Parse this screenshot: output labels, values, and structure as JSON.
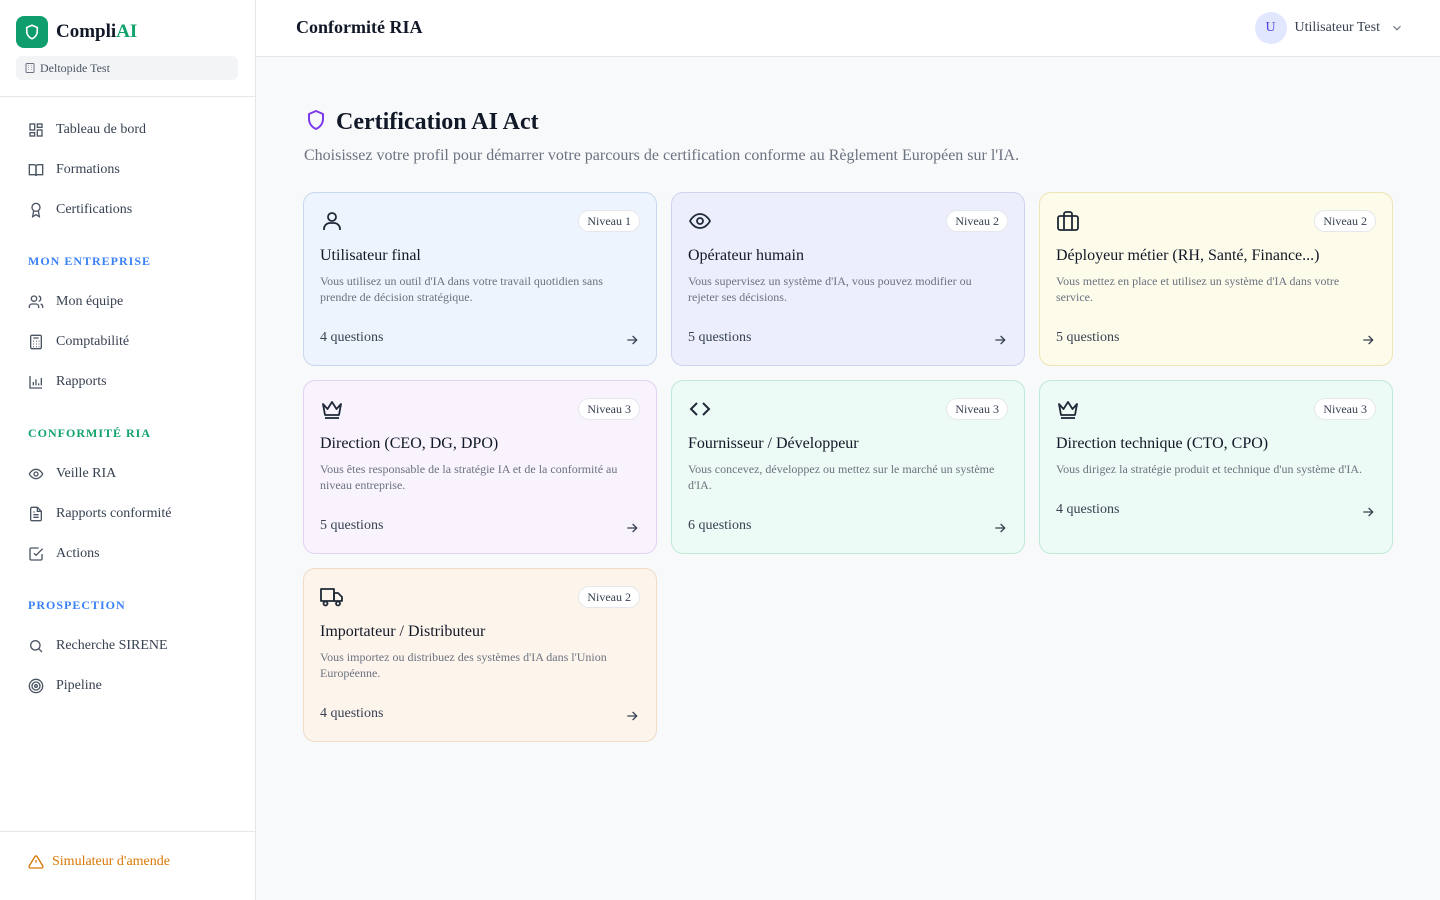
{
  "brand": {
    "name_prefix": "Compli",
    "name_accent": "AI",
    "workspace": "Deltopide Test"
  },
  "nav": {
    "main": [
      {
        "label": "Tableau de bord",
        "icon": "dashboard-icon"
      },
      {
        "label": "Formations",
        "icon": "book-icon"
      },
      {
        "label": "Certifications",
        "icon": "award-icon"
      }
    ],
    "sections": [
      {
        "title": "MON ENTREPRISE",
        "color": "#3b82f6",
        "items": [
          {
            "label": "Mon équipe",
            "icon": "users-icon"
          },
          {
            "label": "Comptabilité",
            "icon": "calculator-icon"
          },
          {
            "label": "Rapports",
            "icon": "bar-chart-icon"
          }
        ]
      },
      {
        "title": "CONFORMITÉ RIA",
        "color": "#10a36b",
        "items": [
          {
            "label": "Veille RIA",
            "icon": "eye-icon"
          },
          {
            "label": "Rapports conformité",
            "icon": "file-text-icon"
          },
          {
            "label": "Actions",
            "icon": "check-square-icon"
          }
        ]
      },
      {
        "title": "PROSPECTION",
        "color": "#3b82f6",
        "items": [
          {
            "label": "Recherche SIRENE",
            "icon": "search-icon"
          },
          {
            "label": "Pipeline",
            "icon": "target-icon"
          }
        ]
      }
    ],
    "bottom": {
      "label": "Simulateur d'amende",
      "icon": "alert-triangle-icon",
      "color": "#d97706"
    }
  },
  "header": {
    "title": "Conformité RIA",
    "user_initial": "U",
    "user_name": "Utilisateur Test"
  },
  "main": {
    "title": "Certification AI Act",
    "subtitle": "Choisissez votre profil pour démarrer votre parcours de certification conforme au Règlement Européen sur l'IA.",
    "cards": [
      {
        "icon": "user-icon",
        "level": "Niveau 1",
        "title": "Utilisateur final",
        "description": "Vous utilisez un outil d'IA dans votre travail quotidien sans prendre de décision stratégique.",
        "questions": "4 questions",
        "bg": "#eef4fd",
        "border": "#c9d8ef"
      },
      {
        "icon": "eye-icon",
        "level": "Niveau 2",
        "title": "Opérateur humain",
        "description": "Vous supervisez un système d'IA, vous pouvez modifier ou rejeter ses décisions.",
        "questions": "5 questions",
        "bg": "#eceffb",
        "border": "#cdd3ee"
      },
      {
        "icon": "briefcase-icon",
        "level": "Niveau 2",
        "title": "Déployeur métier (RH, Santé, Finance...)",
        "description": "Vous mettez en place et utilisez un système d'IA dans votre service.",
        "questions": "5 questions",
        "bg": "#fdfbea",
        "border": "#ece5b6"
      },
      {
        "icon": "crown-icon",
        "level": "Niveau 3",
        "title": "Direction (CEO, DG, DPO)",
        "description": "Vous êtes responsable de la stratégie IA et de la conformité au niveau entreprise.",
        "questions": "5 questions",
        "bg": "#f8f3fd",
        "border": "#e3d3f2"
      },
      {
        "icon": "code-icon",
        "level": "Niveau 3",
        "title": "Fournisseur / Développeur",
        "description": "Vous concevez, développez ou mettez sur le marché un système d'IA.",
        "questions": "6 questions",
        "bg": "#ecfbf5",
        "border": "#c0ead7"
      },
      {
        "icon": "crown-icon",
        "level": "Niveau 3",
        "title": "Direction technique (CTO, CPO)",
        "description": "Vous dirigez la stratégie produit et technique d'un système d'IA.",
        "questions": "4 questions",
        "bg": "#ecfbf5",
        "border": "#c0ead7"
      },
      {
        "icon": "truck-icon",
        "level": "Niveau 2",
        "title": "Importateur / Distributeur",
        "description": "Vous importez ou distribuez des systèmes d'IA dans l'Union Européenne.",
        "questions": "4 questions",
        "bg": "#fdf5ec",
        "border": "#f0dcc4"
      }
    ]
  }
}
